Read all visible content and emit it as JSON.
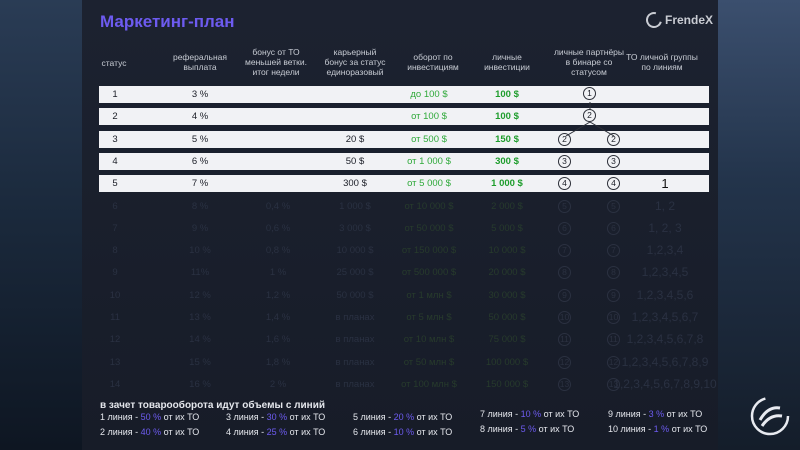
{
  "title": "Маркетинг-план",
  "brand": "FrendeX",
  "headers": {
    "status": "статус",
    "referral": [
      "реферальная",
      "выплата"
    ],
    "bonus_to": [
      "бонус от ТО",
      "меньшей ветки.",
      "итог недели"
    ],
    "career": [
      "карьерный",
      "бонус за статус",
      "единоразовый"
    ],
    "turnover": [
      "оборот по",
      "инвестициям"
    ],
    "personal": [
      "личные",
      "инвестиции"
    ],
    "partners": [
      "личные партнёры",
      "в бинаре со",
      "статусом"
    ],
    "group_to": [
      "ТО личной группы",
      "по линиям"
    ]
  },
  "rows": [
    {
      "status": "1",
      "ref": "3 %",
      "bonus": "",
      "career": "",
      "turnover": "до 100 $",
      "invest": "100 $",
      "p_left": "",
      "p_right": "",
      "group": ""
    },
    {
      "status": "2",
      "ref": "4 %",
      "bonus": "",
      "career": "",
      "turnover": "от 100 $",
      "invest": "100 $",
      "p_left": "",
      "p_right": "",
      "group": ""
    },
    {
      "status": "3",
      "ref": "5 %",
      "bonus": "",
      "career": "20 $",
      "turnover": "от 500 $",
      "invest": "150 $",
      "p_left": "2",
      "p_right": "2",
      "group": ""
    },
    {
      "status": "4",
      "ref": "6 %",
      "bonus": "",
      "career": "50 $",
      "turnover": "от 1 000 $",
      "invest": "300 $",
      "p_left": "3",
      "p_right": "3",
      "group": ""
    },
    {
      "status": "5",
      "ref": "7 %",
      "bonus": "",
      "career": "300 $",
      "turnover": "от 5 000 $",
      "invest": "1 000 $",
      "p_left": "4",
      "p_right": "4",
      "group": "1"
    },
    {
      "status": "6",
      "ref": "8 %",
      "bonus": "0,4 %",
      "career": "1 000 $",
      "turnover": "от 10 000 $",
      "invest": "2 000 $",
      "p_left": "5",
      "p_right": "5",
      "group": "1, 2"
    },
    {
      "status": "7",
      "ref": "9 %",
      "bonus": "0,6 %",
      "career": "3 000 $",
      "turnover": "от 50 000 $",
      "invest": "5 000 $",
      "p_left": "6",
      "p_right": "6",
      "group": "1, 2, 3"
    },
    {
      "status": "8",
      "ref": "10 %",
      "bonus": "0,8 %",
      "career": "10 000 $",
      "turnover": "от 150 000 $",
      "invest": "10 000 $",
      "p_left": "7",
      "p_right": "7",
      "group": "1,2,3,4"
    },
    {
      "status": "9",
      "ref": "11%",
      "bonus": "1 %",
      "career": "25 000 $",
      "turnover": "от 500 000 $",
      "invest": "20 000 $",
      "p_left": "8",
      "p_right": "8",
      "group": "1,2,3,4,5"
    },
    {
      "status": "10",
      "ref": "12 %",
      "bonus": "1,2 %",
      "career": "50 000 $",
      "turnover": "от 1 млн $",
      "invest": "30 000 $",
      "p_left": "9",
      "p_right": "9",
      "group": "1,2,3,4,5,6"
    },
    {
      "status": "11",
      "ref": "13 %",
      "bonus": "1,4 %",
      "career": "в планах",
      "turnover": "от 5 млн $",
      "invest": "50 000 $",
      "p_left": "10",
      "p_right": "10",
      "group": "1,2,3,4,5,6,7"
    },
    {
      "status": "12",
      "ref": "14 %",
      "bonus": "1,6 %",
      "career": "в планах",
      "turnover": "от 10 млн $",
      "invest": "75 000 $",
      "p_left": "11",
      "p_right": "11",
      "group": "1,2,3,4,5,6,7,8"
    },
    {
      "status": "13",
      "ref": "15 %",
      "bonus": "1,8 %",
      "career": "в планах",
      "turnover": "от 50 млн $",
      "invest": "100 000 $",
      "p_left": "12",
      "p_right": "12",
      "group": "1,2,3,4,5,6,7,8,9"
    },
    {
      "status": "14",
      "ref": "16 %",
      "bonus": "2 %",
      "career": "в планах",
      "turnover": "от 100 млн $",
      "invest": "150 000 $",
      "p_left": "13",
      "p_right": "13",
      "group": "1,2,3,4,5,6,7,8,9,10"
    }
  ],
  "tree": {
    "top": "1",
    "mid": "2"
  },
  "footer": {
    "title": "в зачет товарооборота идут объемы с линий",
    "lines": [
      {
        "pre": "1 линия - ",
        "pct": "50 %",
        "post": " от их ТО"
      },
      {
        "pre": "2 линия - ",
        "pct": "40 %",
        "post": " от их ТО"
      },
      {
        "pre": "3 линия - ",
        "pct": "30 %",
        "post": " от их ТО"
      },
      {
        "pre": "4 линия - ",
        "pct": "25 %",
        "post": "  от их ТО"
      },
      {
        "pre": "5 линия - ",
        "pct": "20 %",
        "post": " от их ТО"
      },
      {
        "pre": "6 линия - ",
        "pct": "10 %",
        "post": " от их ТО"
      },
      {
        "pre": "7 линия - ",
        "pct": "10 %",
        "post": " от их ТО"
      },
      {
        "pre": "8 линия - ",
        "pct": "5 %",
        "post": " от их ТО"
      },
      {
        "pre": "9 линия - ",
        "pct": "3 %",
        "post": " от их ТО"
      },
      {
        "pre": "10 линия - ",
        "pct": "1 %",
        "post": " от их ТО"
      }
    ]
  }
}
